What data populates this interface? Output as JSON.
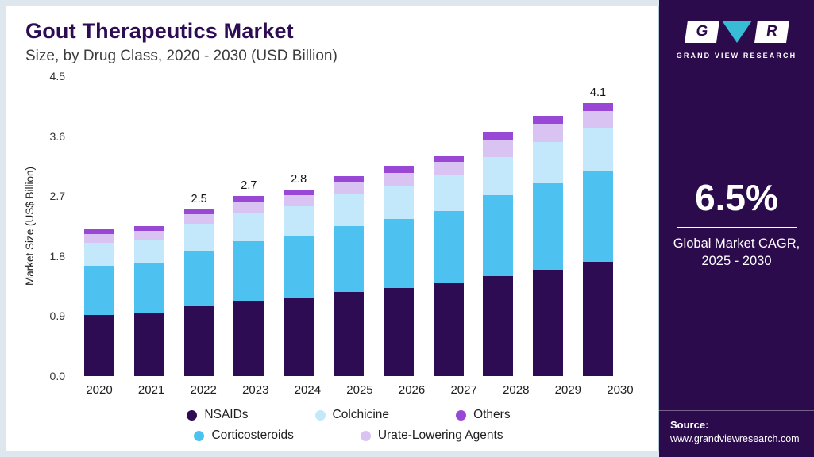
{
  "header": {
    "title": "Gout Therapeutics Market",
    "subtitle": "Size, by Drug Class, 2020 - 2030 (USD Billion)"
  },
  "chart_data": {
    "type": "bar",
    "stacked": true,
    "title": "Gout Therapeutics Market Size, by Drug Class, 2020 - 2030 (USD Billion)",
    "xlabel": "",
    "ylabel": "Market Size (US$ Billion)",
    "ylim": [
      0,
      4.5
    ],
    "yticks": [
      "0.0",
      "0.9",
      "1.8",
      "2.7",
      "3.6",
      "4.5"
    ],
    "grid": false,
    "legend_position": "bottom",
    "categories": [
      "2020",
      "2021",
      "2022",
      "2023",
      "2024",
      "2025",
      "2026",
      "2027",
      "2028",
      "2029",
      "2030"
    ],
    "series": [
      {
        "name": "NSAIDs",
        "color": "#2d0c54",
        "values": [
          0.92,
          0.95,
          1.05,
          1.13,
          1.18,
          1.26,
          1.32,
          1.39,
          1.5,
          1.6,
          1.71
        ]
      },
      {
        "name": "Corticosteroids",
        "color": "#4dc2f1",
        "values": [
          0.73,
          0.74,
          0.83,
          0.89,
          0.92,
          0.99,
          1.04,
          1.09,
          1.21,
          1.29,
          1.36
        ]
      },
      {
        "name": "Colchicine",
        "color": "#c3e7fb",
        "values": [
          0.35,
          0.36,
          0.4,
          0.43,
          0.45,
          0.48,
          0.5,
          0.53,
          0.58,
          0.62,
          0.66
        ]
      },
      {
        "name": "Urate-Lowering Agents",
        "color": "#d8c3f2",
        "values": [
          0.13,
          0.13,
          0.15,
          0.16,
          0.17,
          0.18,
          0.19,
          0.2,
          0.25,
          0.27,
          0.25
        ]
      },
      {
        "name": "Others",
        "color": "#9948d6",
        "values": [
          0.07,
          0.07,
          0.07,
          0.09,
          0.08,
          0.09,
          0.1,
          0.09,
          0.11,
          0.12,
          0.12
        ]
      }
    ],
    "totals": [
      2.2,
      2.25,
      2.5,
      2.7,
      2.8,
      3.0,
      3.15,
      3.3,
      3.65,
      3.9,
      4.1
    ],
    "total_labels": [
      "",
      "",
      "2.5",
      "2.7",
      "2.8",
      "",
      "",
      "",
      "",
      "",
      "4.1"
    ],
    "legend_rows": [
      [
        "NSAIDs",
        "Colchicine",
        "Others"
      ],
      [
        "Corticosteroids",
        "Urate-Lowering Agents"
      ]
    ]
  },
  "sidebar": {
    "background": "#2c0b4d",
    "accent": "#38bcd6",
    "logo_g": "G",
    "logo_r": "R",
    "brand": "GRAND VIEW RESEARCH",
    "cagr_value": "6.5%",
    "cagr_label_line1": "Global Market CAGR,",
    "cagr_label_line2": "2025 - 2030",
    "source_label": "Source:",
    "source_url": "www.grandviewresearch.com"
  }
}
